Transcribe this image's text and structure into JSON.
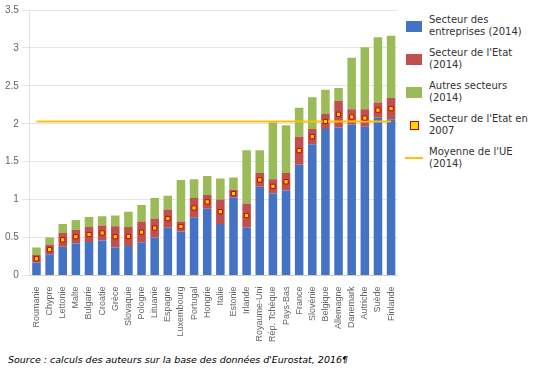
{
  "chart_data": {
    "type": "bar",
    "stacked": true,
    "grid": true,
    "legend": "right",
    "categories": [
      "Roumanie",
      "Chypre",
      "Lettonie",
      "Malte",
      "Bulgarie",
      "Croatie",
      "Grèce",
      "Slovaquie",
      "Pologne",
      "Lituanie",
      "Espagne",
      "Luxembourg",
      "Portugal",
      "Hongrie",
      "Italie",
      "Estonie",
      "Irlande",
      "Royaume-Uni",
      "Rép. Tchèque",
      "Pays-Bas",
      "France",
      "Slovénie",
      "Belgique",
      "Allemagne",
      "Danemark",
      "Autriche",
      "Suède",
      "Finlande"
    ],
    "series": [
      {
        "name": "Secteur des\nentreprises (2014)",
        "type": "bar",
        "color": "#4472C4",
        "values": [
          0.17,
          0.28,
          0.38,
          0.42,
          0.44,
          0.46,
          0.37,
          0.39,
          0.43,
          0.5,
          0.63,
          0.58,
          0.76,
          0.88,
          0.68,
          1.03,
          0.63,
          1.17,
          1.08,
          1.12,
          1.46,
          1.73,
          1.93,
          1.95,
          1.99,
          1.96,
          2.08,
          2.06
        ]
      },
      {
        "name": "Secteur de l'Etat\n(2014)",
        "type": "bar",
        "color": "#C0504D",
        "values": [
          0.1,
          0.12,
          0.18,
          0.18,
          0.2,
          0.2,
          0.28,
          0.25,
          0.28,
          0.25,
          0.24,
          0.13,
          0.26,
          0.18,
          0.32,
          0.1,
          0.32,
          0.18,
          0.19,
          0.23,
          0.37,
          0.2,
          0.2,
          0.35,
          0.2,
          0.23,
          0.2,
          0.28
        ]
      },
      {
        "name": "Autres secteurs\n(2014)",
        "type": "bar",
        "color": "#9BBB59",
        "values": [
          0.1,
          0.1,
          0.12,
          0.13,
          0.13,
          0.12,
          0.14,
          0.2,
          0.22,
          0.27,
          0.18,
          0.55,
          0.25,
          0.25,
          0.28,
          0.16,
          0.7,
          0.3,
          0.75,
          0.63,
          0.38,
          0.42,
          0.32,
          0.17,
          0.68,
          0.82,
          0.86,
          0.82
        ]
      },
      {
        "name": "Secteur de l'Etat en\n2007",
        "type": "scatter",
        "marker": "square",
        "color": "#FFD700",
        "values": [
          0.22,
          0.34,
          0.47,
          0.51,
          0.54,
          0.56,
          0.51,
          0.515,
          0.57,
          0.625,
          0.75,
          0.645,
          0.89,
          0.97,
          0.84,
          1.08,
          0.79,
          1.26,
          1.175,
          1.235,
          1.645,
          1.83,
          2.03,
          2.125,
          2.09,
          2.075,
          2.18,
          2.2
        ]
      },
      {
        "name": "Moyenne de l'UE\n(2014)",
        "type": "line",
        "line_style": "solid",
        "color": "#FFC000",
        "values": [
          2.03,
          2.03,
          2.03,
          2.03,
          2.03,
          2.03,
          2.03,
          2.03,
          2.03,
          2.03,
          2.03,
          2.03,
          2.03,
          2.03,
          2.03,
          2.03,
          2.03,
          2.03,
          2.03,
          2.03,
          2.03,
          2.03,
          2.03,
          2.03,
          2.03,
          2.03,
          2.03,
          2.03
        ]
      }
    ],
    "ylim": [
      0,
      3.5
    ],
    "yticks": [
      0,
      0.5,
      1,
      1.5,
      2,
      2.5,
      3,
      3.5
    ],
    "annotations": [
      "Source : calculs des auteurs sur la base des données d'Eurostat, 2016¶"
    ]
  }
}
